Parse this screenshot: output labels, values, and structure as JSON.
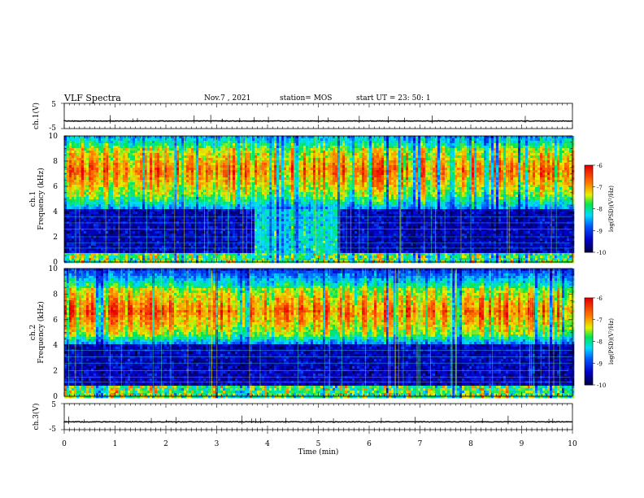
{
  "header": {
    "title": "VLF Spectra",
    "date": "Nov.7 , 2021",
    "station": "station= MOS",
    "start": "start UT = 23: 50: 1"
  },
  "chart_data": [
    {
      "type": "line",
      "panel": "ch.1",
      "ylabel": "ch.1(V)",
      "ylim": [
        -5,
        5
      ],
      "yticks": [
        "5",
        "-5"
      ],
      "xlim": [
        0,
        10
      ],
      "baseline": -2,
      "color": "#000000"
    },
    {
      "type": "heatmap",
      "panel": "ch.1 spectrogram",
      "ylabel": "ch.1\nFrequency (kHz)",
      "ylim": [
        0,
        10
      ],
      "yticks": [
        "0",
        "2",
        "4",
        "6",
        "8",
        "10"
      ],
      "xlim": [
        0,
        10
      ],
      "colorbar": {
        "label": "log(PSD)(V²/Hz)",
        "range": [
          -10,
          -6
        ],
        "ticks": [
          "-6",
          "-7",
          "-8",
          "-9",
          "-10"
        ]
      },
      "features": {
        "strong_band_khz": [
          5.5,
          9.2
        ],
        "low_band_khz": [
          0,
          4.2
        ],
        "noise_burst_min": [
          3.7,
          5.4
        ]
      }
    },
    {
      "type": "heatmap",
      "panel": "ch.2 spectrogram",
      "ylabel": "ch.2\nFrequency (kHz)",
      "ylim": [
        0,
        10
      ],
      "yticks": [
        "0",
        "2",
        "4",
        "6",
        "8",
        "10"
      ],
      "xlim": [
        0,
        10
      ],
      "colorbar": {
        "label": "log(PSD)(V²/Hz)",
        "range": [
          -10,
          -6
        ],
        "ticks": [
          "-6",
          "-7",
          "-8",
          "-9",
          "-10"
        ]
      },
      "features": {
        "strong_band_khz": [
          5.0,
          8.5
        ],
        "low_band_khz": [
          0,
          4.0
        ]
      }
    },
    {
      "type": "line",
      "panel": "ch.3",
      "ylabel": "ch.3(V)",
      "ylim": [
        -5,
        5
      ],
      "yticks": [
        "5",
        "-5"
      ],
      "xlim": [
        0,
        10
      ],
      "baseline": -2,
      "color": "#000000"
    }
  ],
  "x_axis": {
    "label": "Time (min)",
    "ticks": [
      "0",
      "1",
      "2",
      "3",
      "4",
      "5",
      "6",
      "7",
      "8",
      "9",
      "10"
    ]
  }
}
